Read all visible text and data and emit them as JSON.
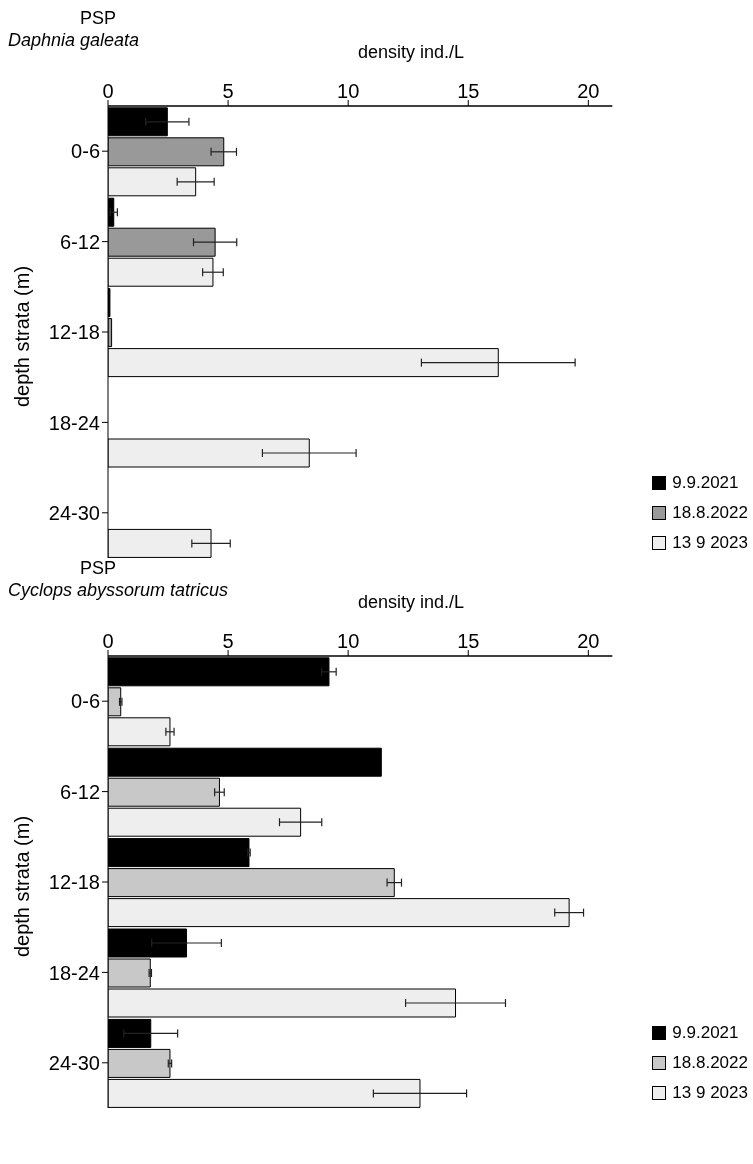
{
  "chart_data": [
    {
      "type": "bar",
      "orientation": "horizontal",
      "title": "PSP",
      "subtitle": "Daphnia galeata",
      "xlabel": "density ind./L",
      "ylabel": "depth strata (m)",
      "categories": [
        "0-6",
        "6-12",
        "12-18",
        "18-24",
        "24-30"
      ],
      "xlim": [
        0,
        21
      ],
      "xticks": [
        0,
        5,
        10,
        15,
        20
      ],
      "legend": "bottom right",
      "series": [
        {
          "name": "9.9.2021",
          "color": "#000000",
          "values": [
            2.47,
            0.24,
            0.08,
            null,
            null
          ],
          "errors": [
            0.9,
            0.15,
            null,
            null,
            null
          ]
        },
        {
          "name": "18.8.2022",
          "color": "#999999",
          "values": [
            4.82,
            4.46,
            0.15,
            null,
            0
          ],
          "errors": [
            0.53,
            0.9,
            null,
            null,
            null
          ]
        },
        {
          "name": "13 9 2023",
          "color": "#eeeeee",
          "values": [
            3.65,
            4.37,
            16.25,
            8.38,
            4.29
          ],
          "errors": [
            0.77,
            0.43,
            3.2,
            1.95,
            0.8
          ]
        }
      ]
    },
    {
      "type": "bar",
      "orientation": "horizontal",
      "title": "PSP",
      "subtitle": "Cyclops abyssorum tatricus",
      "xlabel": "density ind./L",
      "ylabel": "depth strata (m)",
      "categories": [
        "0-6",
        "6-12",
        "12-18",
        "18-24",
        "24-30"
      ],
      "xlim": [
        0,
        21
      ],
      "xticks": [
        0,
        5,
        10,
        15,
        20
      ],
      "legend": "bottom right",
      "series": [
        {
          "name": "9.9.2021",
          "color": "#000000",
          "values": [
            9.2,
            11.38,
            5.87,
            3.27,
            1.78
          ],
          "errors": [
            0.3,
            null,
            0.05,
            1.45,
            1.12
          ]
        },
        {
          "name": "18.8.2022",
          "color": "#c8c8c8",
          "values": [
            0.53,
            4.64,
            11.92,
            1.76,
            2.58
          ],
          "errors": [
            0.05,
            0.2,
            0.3,
            0.05,
            0.07
          ]
        },
        {
          "name": "13 9 2023",
          "color": "#eeeeee",
          "values": [
            2.58,
            8.02,
            19.2,
            14.47,
            12.99
          ],
          "errors": [
            0.17,
            0.88,
            0.6,
            2.08,
            1.94
          ]
        }
      ]
    }
  ]
}
